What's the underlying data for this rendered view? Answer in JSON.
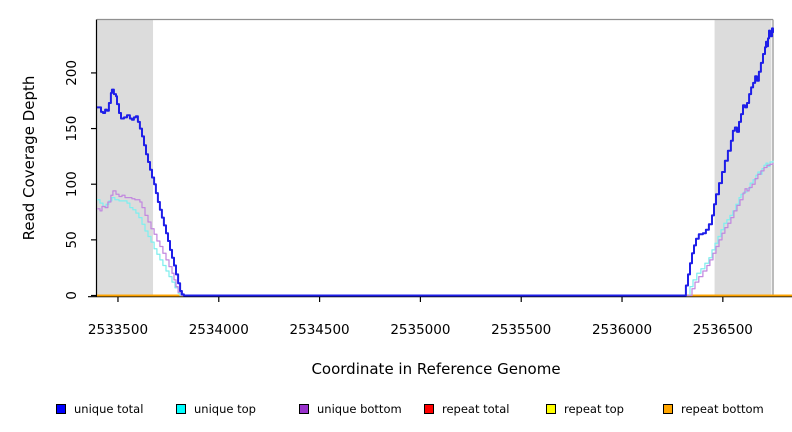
{
  "chart_data": {
    "type": "line",
    "title": "",
    "xlabel": "Coordinate in Reference Genome",
    "ylabel": "Read Coverage Depth",
    "xlim": [
      2533396,
      2536843
    ],
    "ylim": [
      0,
      248
    ],
    "x_ticks": [
      2533500,
      2534000,
      2534500,
      2535000,
      2535500,
      2536000,
      2536500
    ],
    "y_ticks": [
      0,
      50,
      100,
      150,
      200
    ],
    "grid": false,
    "legend_position": "bottom",
    "background": "#FFFFFF",
    "band_color": "#DCDCDC",
    "frame_color": "#909090",
    "axis_color": "#000000",
    "shaded_regions": [
      {
        "x0": 2533396,
        "x1": 2533674
      },
      {
        "x0": 2536459,
        "x1": 2536741
      }
    ],
    "series": [
      {
        "name": "repeat total",
        "line_color": "#DD0000",
        "width": 1.5,
        "points": [
          [
            2533396,
            0
          ],
          [
            2536843,
            0
          ]
        ]
      },
      {
        "name": "repeat top",
        "line_color": "#FFFF00",
        "width": 1.5,
        "points": [
          [
            2533396,
            0
          ],
          [
            2536843,
            0
          ]
        ]
      },
      {
        "name": "repeat bottom",
        "line_color": "#FFA300",
        "width": 1.8,
        "points": [
          [
            2533396,
            0
          ],
          [
            2536843,
            0
          ]
        ]
      },
      {
        "name": "unique top",
        "line_color": "#80EEEE",
        "width": 1.25,
        "points": [
          [
            2533396,
            86
          ],
          [
            2533411,
            83
          ],
          [
            2533426,
            80
          ],
          [
            2533441,
            82
          ],
          [
            2533455,
            85
          ],
          [
            2533470,
            88
          ],
          [
            2533485,
            86
          ],
          [
            2533505,
            85
          ],
          [
            2533525,
            85
          ],
          [
            2533545,
            83
          ],
          [
            2533559,
            79
          ],
          [
            2533574,
            77
          ],
          [
            2533589,
            74
          ],
          [
            2533604,
            70
          ],
          [
            2533619,
            64
          ],
          [
            2533634,
            58
          ],
          [
            2533649,
            53
          ],
          [
            2533664,
            48
          ],
          [
            2533679,
            42
          ],
          [
            2533693,
            37
          ],
          [
            2533708,
            32
          ],
          [
            2533723,
            27
          ],
          [
            2533738,
            22
          ],
          [
            2533753,
            17
          ],
          [
            2533768,
            12
          ],
          [
            2533783,
            7
          ],
          [
            2533798,
            2
          ],
          [
            2533808,
            0
          ],
          [
            2536322,
            0
          ],
          [
            2536337,
            8
          ],
          [
            2536352,
            14
          ],
          [
            2536371,
            20
          ],
          [
            2536391,
            24
          ],
          [
            2536411,
            29
          ],
          [
            2536431,
            34
          ],
          [
            2536446,
            41
          ],
          [
            2536461,
            47
          ],
          [
            2536476,
            53
          ],
          [
            2536491,
            59
          ],
          [
            2536505,
            65
          ],
          [
            2536520,
            68
          ],
          [
            2536535,
            72
          ],
          [
            2536550,
            76
          ],
          [
            2536565,
            82
          ],
          [
            2536580,
            88
          ],
          [
            2536590,
            91
          ],
          [
            2536605,
            93
          ],
          [
            2536620,
            96
          ],
          [
            2536635,
            101
          ],
          [
            2536650,
            104
          ],
          [
            2536664,
            108
          ],
          [
            2536674,
            111
          ],
          [
            2536684,
            109
          ],
          [
            2536694,
            114
          ],
          [
            2536704,
            117
          ],
          [
            2536714,
            119
          ],
          [
            2536724,
            116
          ],
          [
            2536734,
            120
          ],
          [
            2536749,
            121
          ]
        ]
      },
      {
        "name": "unique bottom",
        "line_color": "#C288DF",
        "width": 1.25,
        "points": [
          [
            2533396,
            78
          ],
          [
            2533411,
            76
          ],
          [
            2533421,
            80
          ],
          [
            2533436,
            79
          ],
          [
            2533450,
            84
          ],
          [
            2533465,
            90
          ],
          [
            2533475,
            94
          ],
          [
            2533490,
            91
          ],
          [
            2533505,
            89
          ],
          [
            2533520,
            90
          ],
          [
            2533535,
            88
          ],
          [
            2533555,
            88
          ],
          [
            2533569,
            87
          ],
          [
            2533584,
            86
          ],
          [
            2533599,
            86
          ],
          [
            2533609,
            84
          ],
          [
            2533619,
            79
          ],
          [
            2533634,
            72
          ],
          [
            2533649,
            66
          ],
          [
            2533664,
            60
          ],
          [
            2533679,
            55
          ],
          [
            2533693,
            49
          ],
          [
            2533708,
            44
          ],
          [
            2533723,
            38
          ],
          [
            2533738,
            32
          ],
          [
            2533753,
            26
          ],
          [
            2533768,
            20
          ],
          [
            2533778,
            14
          ],
          [
            2533788,
            8
          ],
          [
            2533798,
            3
          ],
          [
            2533813,
            0
          ],
          [
            2536332,
            0
          ],
          [
            2536347,
            6
          ],
          [
            2536362,
            12
          ],
          [
            2536381,
            17
          ],
          [
            2536401,
            22
          ],
          [
            2536421,
            27
          ],
          [
            2536436,
            32
          ],
          [
            2536451,
            38
          ],
          [
            2536466,
            44
          ],
          [
            2536481,
            50
          ],
          [
            2536496,
            56
          ],
          [
            2536510,
            61
          ],
          [
            2536525,
            65
          ],
          [
            2536540,
            70
          ],
          [
            2536555,
            76
          ],
          [
            2536570,
            81
          ],
          [
            2536585,
            86
          ],
          [
            2536600,
            92
          ],
          [
            2536610,
            96
          ],
          [
            2536620,
            94
          ],
          [
            2536630,
            97
          ],
          [
            2536645,
            100
          ],
          [
            2536660,
            105
          ],
          [
            2536674,
            109
          ],
          [
            2536689,
            112
          ],
          [
            2536704,
            115
          ],
          [
            2536719,
            117
          ],
          [
            2536734,
            118
          ],
          [
            2536749,
            119
          ]
        ]
      },
      {
        "name": "unique total",
        "line_color": "#1E1EE8",
        "width": 2,
        "points": [
          [
            2533396,
            169
          ],
          [
            2533416,
            165
          ],
          [
            2533426,
            164
          ],
          [
            2533436,
            167
          ],
          [
            2533445,
            166
          ],
          [
            2533455,
            173
          ],
          [
            2533465,
            182
          ],
          [
            2533470,
            185
          ],
          [
            2533480,
            181
          ],
          [
            2533490,
            179
          ],
          [
            2533495,
            172
          ],
          [
            2533505,
            164
          ],
          [
            2533515,
            159
          ],
          [
            2533530,
            160
          ],
          [
            2533545,
            162
          ],
          [
            2533559,
            159
          ],
          [
            2533569,
            158
          ],
          [
            2533579,
            160
          ],
          [
            2533589,
            161
          ],
          [
            2533599,
            156
          ],
          [
            2533609,
            150
          ],
          [
            2533619,
            143
          ],
          [
            2533629,
            135
          ],
          [
            2533639,
            127
          ],
          [
            2533649,
            120
          ],
          [
            2533659,
            113
          ],
          [
            2533669,
            106
          ],
          [
            2533679,
            100
          ],
          [
            2533688,
            92
          ],
          [
            2533698,
            84
          ],
          [
            2533708,
            77
          ],
          [
            2533718,
            70
          ],
          [
            2533728,
            63
          ],
          [
            2533738,
            56
          ],
          [
            2533748,
            49
          ],
          [
            2533758,
            41
          ],
          [
            2533768,
            34
          ],
          [
            2533778,
            27
          ],
          [
            2533788,
            19
          ],
          [
            2533798,
            11
          ],
          [
            2533808,
            4
          ],
          [
            2533817,
            1
          ],
          [
            2533827,
            0
          ],
          [
            2536307,
            0
          ],
          [
            2536317,
            9
          ],
          [
            2536327,
            19
          ],
          [
            2536337,
            29
          ],
          [
            2536347,
            38
          ],
          [
            2536357,
            45
          ],
          [
            2536367,
            51
          ],
          [
            2536381,
            55
          ],
          [
            2536401,
            56
          ],
          [
            2536416,
            59
          ],
          [
            2536431,
            64
          ],
          [
            2536446,
            72
          ],
          [
            2536456,
            82
          ],
          [
            2536466,
            91
          ],
          [
            2536481,
            101
          ],
          [
            2536496,
            111
          ],
          [
            2536510,
            121
          ],
          [
            2536525,
            130
          ],
          [
            2536540,
            139
          ],
          [
            2536550,
            148
          ],
          [
            2536560,
            151
          ],
          [
            2536570,
            147
          ],
          [
            2536580,
            156
          ],
          [
            2536590,
            163
          ],
          [
            2536600,
            171
          ],
          [
            2536610,
            169
          ],
          [
            2536620,
            173
          ],
          [
            2536630,
            181
          ],
          [
            2536640,
            187
          ],
          [
            2536650,
            191
          ],
          [
            2536660,
            197
          ],
          [
            2536669,
            193
          ],
          [
            2536679,
            201
          ],
          [
            2536689,
            209
          ],
          [
            2536699,
            217
          ],
          [
            2536709,
            223
          ],
          [
            2536714,
            228
          ],
          [
            2536719,
            224
          ],
          [
            2536724,
            231
          ],
          [
            2536729,
            238
          ],
          [
            2536734,
            233
          ],
          [
            2536744,
            240
          ],
          [
            2536749,
            236
          ]
        ]
      }
    ],
    "legend": [
      {
        "label": "unique total",
        "fill": "#0000FF"
      },
      {
        "label": "unique top",
        "fill": "#00FFFF"
      },
      {
        "label": "unique bottom",
        "fill": "#9932CC"
      },
      {
        "label": "repeat total",
        "fill": "#FF0000"
      },
      {
        "label": "repeat top",
        "fill": "#FFFF00"
      },
      {
        "label": "repeat bottom",
        "fill": "#FFA500"
      }
    ]
  }
}
